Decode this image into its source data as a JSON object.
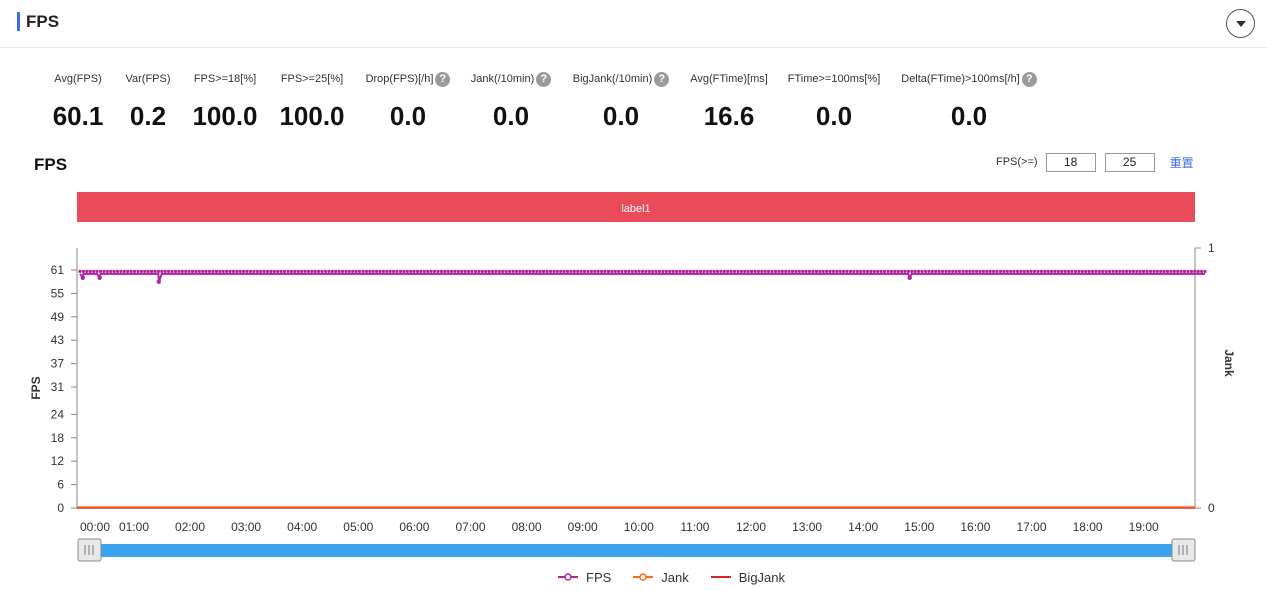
{
  "header": {
    "title": "FPS"
  },
  "stats": [
    {
      "label": "Avg(FPS)",
      "value": "60.1",
      "help": false
    },
    {
      "label": "Var(FPS)",
      "value": "0.2",
      "help": false
    },
    {
      "label": "FPS>=18[%]",
      "value": "100.0",
      "help": false
    },
    {
      "label": "FPS>=25[%]",
      "value": "100.0",
      "help": false
    },
    {
      "label": "Drop(FPS)[/h]",
      "value": "0.0",
      "help": true
    },
    {
      "label": "Jank(/10min)",
      "value": "0.0",
      "help": true
    },
    {
      "label": "BigJank(/10min)",
      "value": "0.0",
      "help": true
    },
    {
      "label": "Avg(FTime)[ms]",
      "value": "16.6",
      "help": false
    },
    {
      "label": "FTime>=100ms[%]",
      "value": "0.0",
      "help": false
    },
    {
      "label": "Delta(FTime)>100ms[/h]",
      "value": "0.0",
      "help": true
    }
  ],
  "chart_title": "FPS",
  "thresholds": {
    "label": "FPS(>=)",
    "low": "18",
    "high": "25",
    "reset": "重置"
  },
  "colors": {
    "accent": "#3d6de8",
    "fps": "#b0249f",
    "jank": "#ff6a1a",
    "bigjank": "#d9262b",
    "label_band": "#e94b5a",
    "slider": "#3ca3ee"
  },
  "chart_data": {
    "type": "line",
    "band_label": "label1",
    "y_left": {
      "label": "FPS",
      "ticks": [
        0,
        6,
        12,
        18,
        24,
        31,
        37,
        43,
        49,
        55,
        61
      ],
      "range": [
        0,
        61
      ]
    },
    "y_right": {
      "label": "Jank",
      "ticks": [
        0,
        1
      ],
      "range": [
        0,
        1
      ]
    },
    "x": {
      "ticks": [
        "00:00",
        "01:00",
        "02:00",
        "03:00",
        "04:00",
        "05:00",
        "06:00",
        "07:00",
        "08:00",
        "09:00",
        "10:00",
        "11:00",
        "12:00",
        "13:00",
        "14:00",
        "15:00",
        "16:00",
        "17:00",
        "18:00",
        "19:00"
      ],
      "range_minutes": [
        0,
        20
      ]
    },
    "series": [
      {
        "name": "FPS",
        "baseline": 60,
        "dips": [
          {
            "t": 0.05,
            "v": 59
          },
          {
            "t": 0.35,
            "v": 59
          },
          {
            "t": 1.4,
            "v": 58
          },
          {
            "t": 14.75,
            "v": 59
          }
        ]
      },
      {
        "name": "Jank",
        "values": [
          0
        ]
      },
      {
        "name": "BigJank",
        "values": [
          0
        ]
      }
    ]
  },
  "legend": [
    {
      "name": "FPS"
    },
    {
      "name": "Jank"
    },
    {
      "name": "BigJank"
    }
  ]
}
